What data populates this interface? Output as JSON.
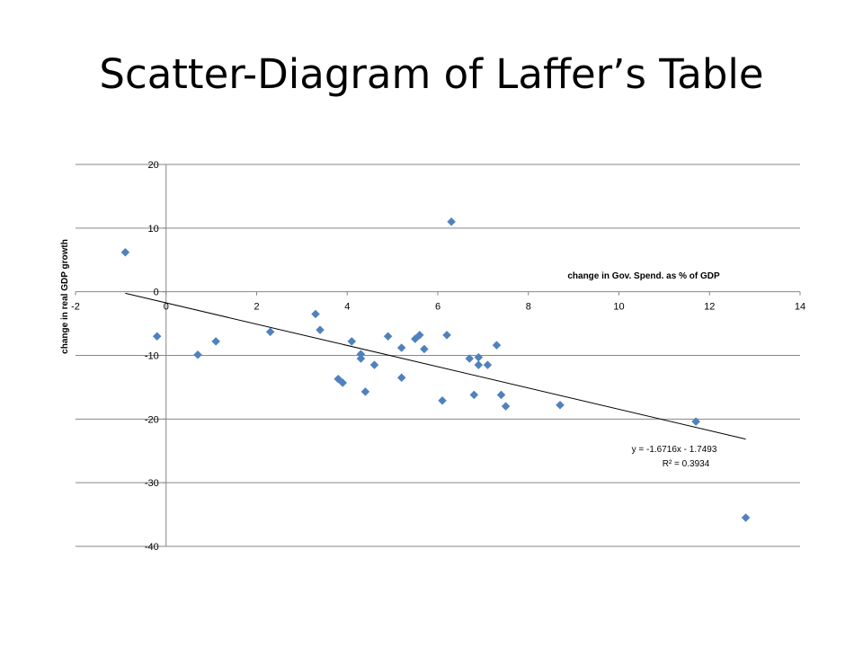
{
  "slide": {
    "title": "Scatter-Diagram of Laffer’s Table"
  },
  "chart_data": {
    "type": "scatter",
    "title": "",
    "xlabel": "change  in Gov. Spend. as % of GDP",
    "ylabel": "change  in real GDP growth",
    "xlim": [
      -2,
      14
    ],
    "ylim": [
      -40,
      20
    ],
    "x_ticks": [
      -2,
      0,
      2,
      4,
      6,
      8,
      10,
      12,
      14
    ],
    "y_ticks": [
      20,
      10,
      0,
      -10,
      -20,
      -30,
      -40
    ],
    "grid": "horizontal",
    "marker": "diamond",
    "color": "#4F81BD",
    "points": [
      [
        -0.9,
        6.2
      ],
      [
        -0.2,
        -7.0
      ],
      [
        0.7,
        -9.9
      ],
      [
        1.1,
        -7.8
      ],
      [
        2.3,
        -6.3
      ],
      [
        3.3,
        -3.5
      ],
      [
        3.4,
        -6.0
      ],
      [
        3.8,
        -13.7
      ],
      [
        3.9,
        -14.3
      ],
      [
        4.1,
        -7.8
      ],
      [
        4.3,
        -10.5
      ],
      [
        4.3,
        -9.8
      ],
      [
        4.4,
        -15.7
      ],
      [
        4.6,
        -11.5
      ],
      [
        4.9,
        -7.0
      ],
      [
        5.2,
        -8.8
      ],
      [
        5.2,
        -13.5
      ],
      [
        5.5,
        -7.4
      ],
      [
        5.6,
        -6.8
      ],
      [
        5.7,
        -9.0
      ],
      [
        6.1,
        -17.1
      ],
      [
        6.2,
        -6.8
      ],
      [
        6.3,
        11.0
      ],
      [
        6.7,
        -10.5
      ],
      [
        6.8,
        -16.2
      ],
      [
        6.9,
        -11.5
      ],
      [
        6.9,
        -10.3
      ],
      [
        7.1,
        -11.5
      ],
      [
        7.3,
        -8.4
      ],
      [
        7.4,
        -16.2
      ],
      [
        7.5,
        -18.0
      ],
      [
        8.7,
        -17.8
      ],
      [
        11.7,
        -20.4
      ],
      [
        12.8,
        -35.5
      ]
    ],
    "trendline": {
      "slope": -1.6716,
      "intercept": -1.7493,
      "x_range": [
        -0.9,
        12.8
      ],
      "equation": "y = -1.6716x - 1.7493",
      "r_squared": "R² = 0.3934"
    }
  }
}
